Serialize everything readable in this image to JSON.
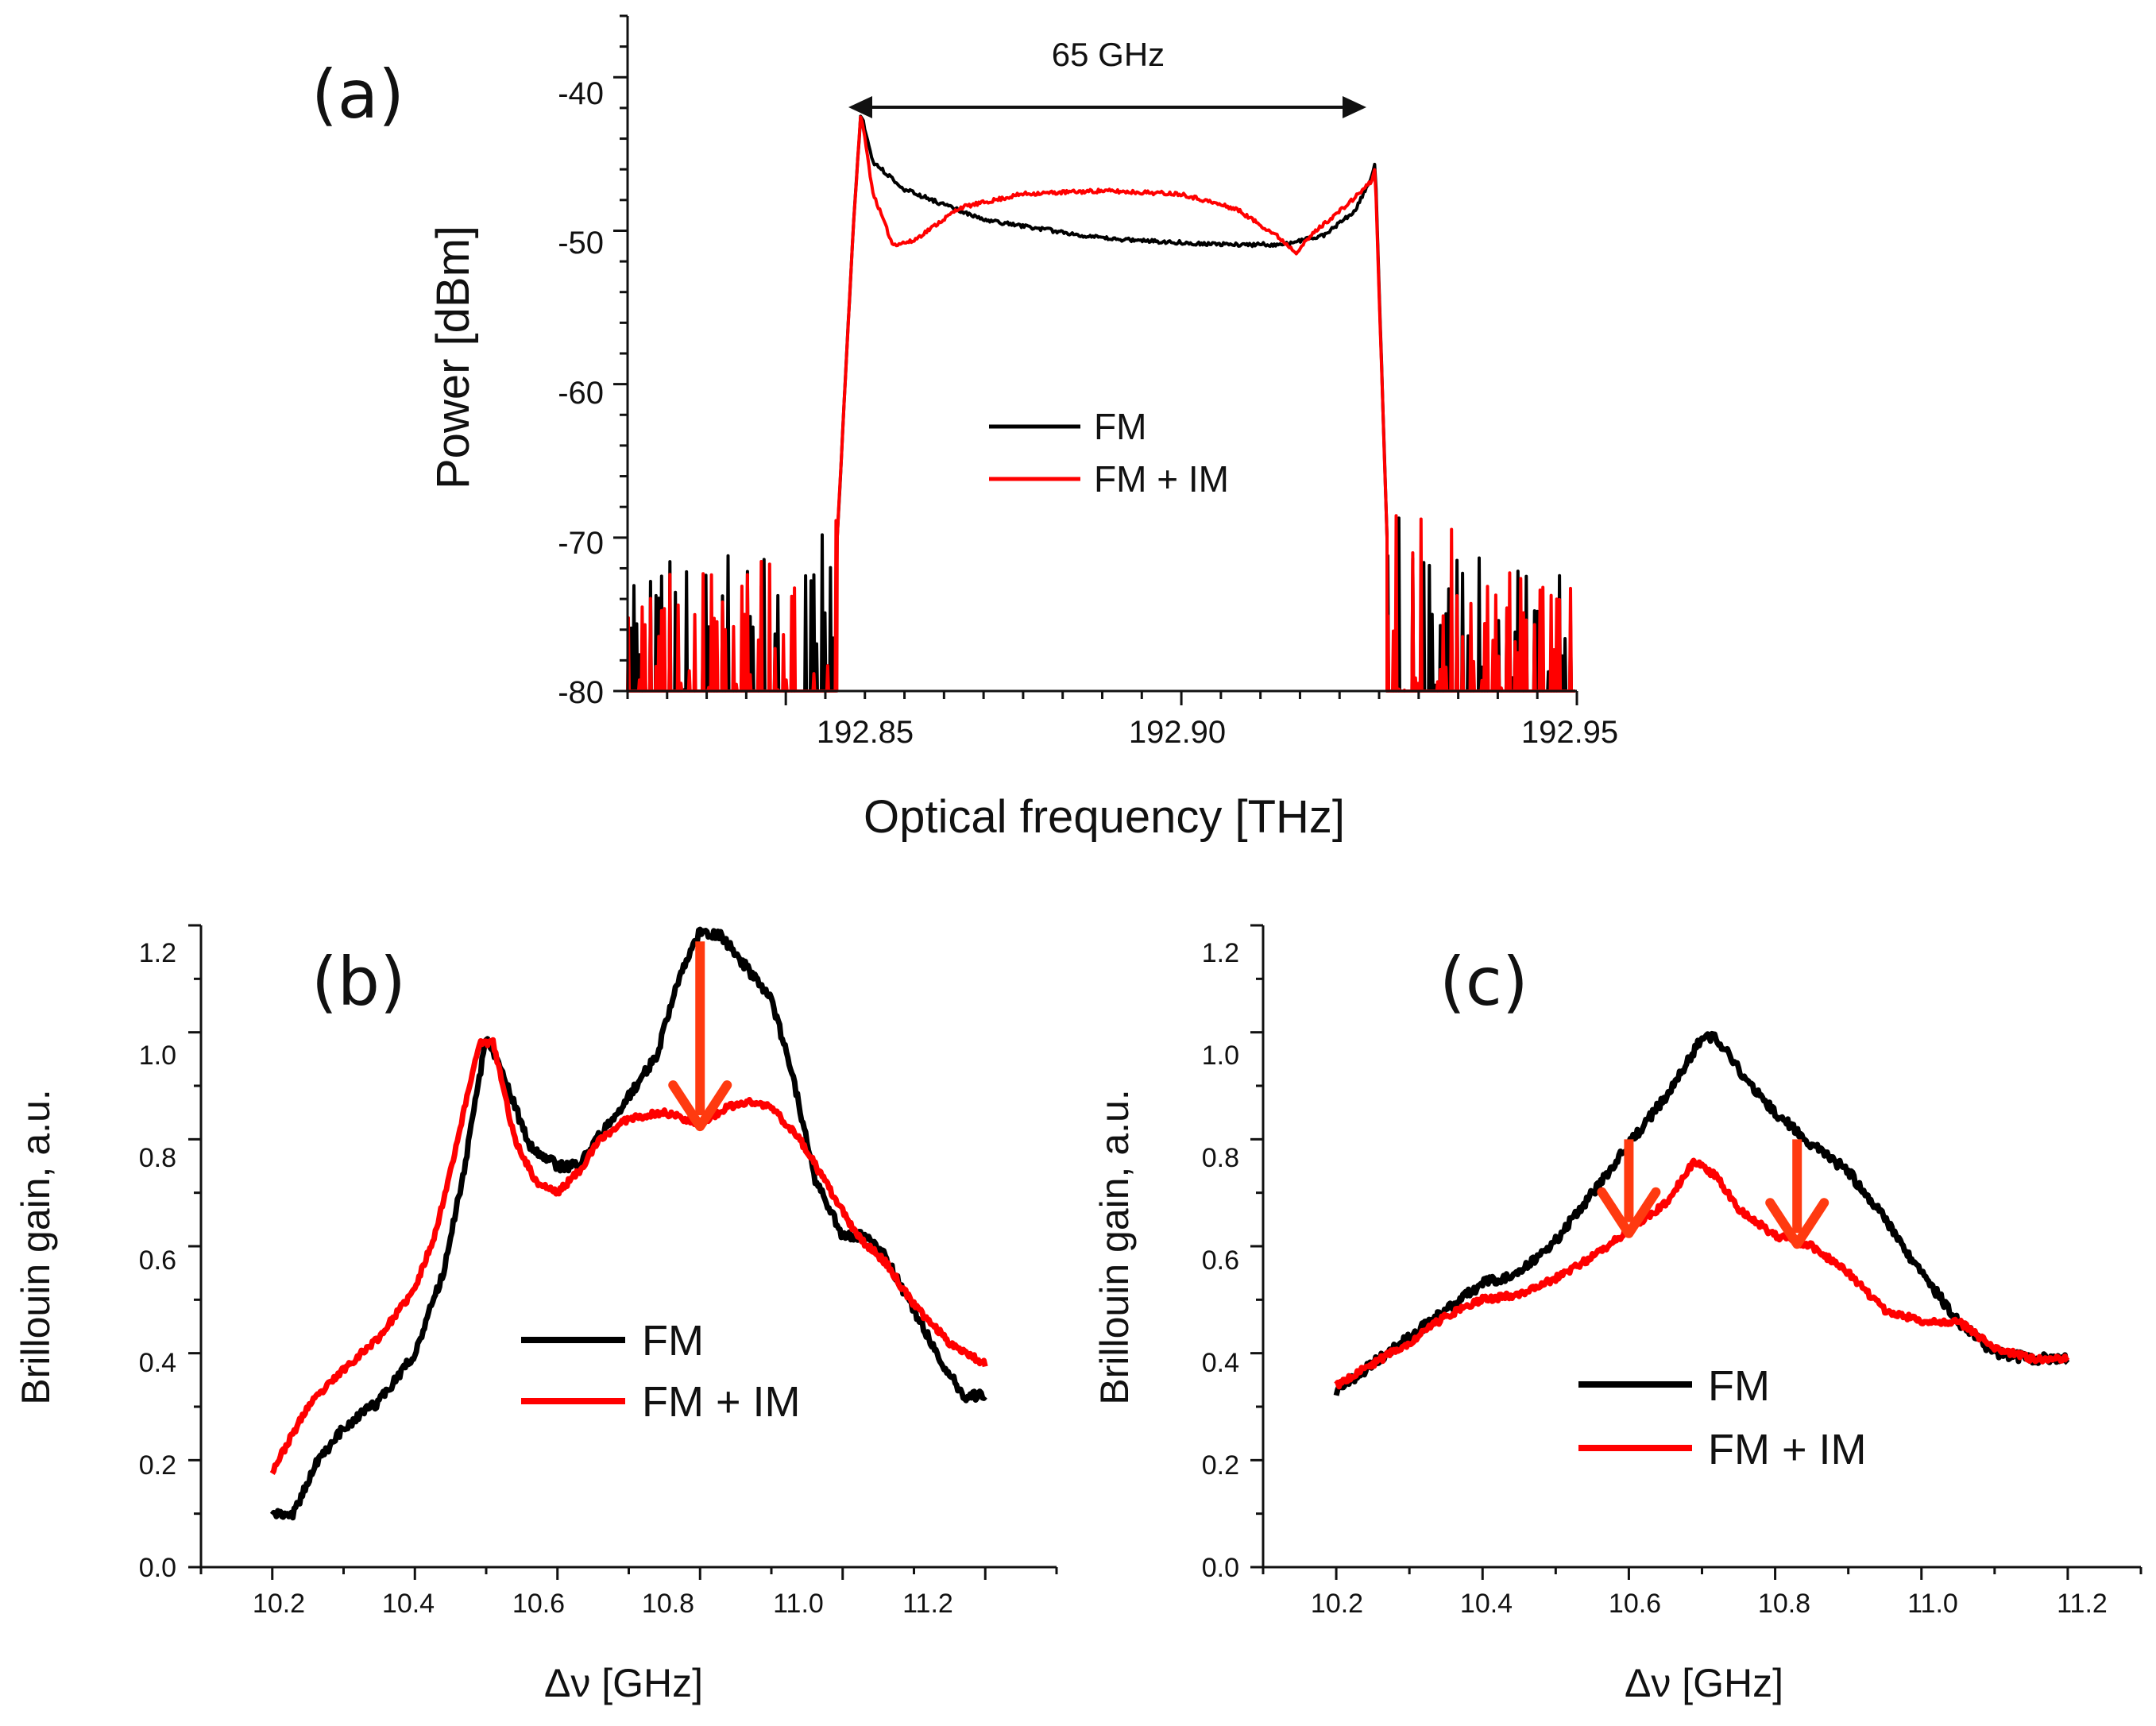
{
  "chart_data": [
    {
      "panel": "(a)",
      "type": "line",
      "xlabel": "Optical frequency [THz]",
      "ylabel": "Power [dBm]",
      "xlim": [
        192.83,
        192.95
      ],
      "ylim": [
        -80,
        -36
      ],
      "xticks": [
        192.85,
        192.9,
        192.95
      ],
      "xtick_labels": [
        "192.85",
        "192.90",
        "192.95"
      ],
      "yticks": [
        -80,
        -70,
        -60,
        -50,
        -40
      ],
      "ytick_labels": [
        "-80",
        "-70",
        "-60",
        "-50",
        "-40"
      ],
      "annotation": {
        "text": "65 GHz",
        "from_x": 192.8595,
        "to_x": 192.9245,
        "y": -38.8
      },
      "legend_position": "center",
      "series": [
        {
          "name": "FM",
          "color": "#000000",
          "edge_x": [
            192.8565,
            192.8585,
            192.8595,
            192.861,
            192.865,
            192.875,
            192.89,
            192.905,
            192.913,
            192.918,
            192.922,
            192.924,
            192.9245,
            192.926
          ],
          "edge_y": [
            -70,
            -50,
            -42.3,
            -45.5,
            -47.3,
            -49.3,
            -50.5,
            -50.9,
            -50.9,
            -50.3,
            -48.7,
            -46.5,
            -45.5,
            -70
          ],
          "noise_seed": 3
        },
        {
          "name": "FM + IM",
          "color": "#ff0000",
          "edge_x": [
            192.8565,
            192.8585,
            192.8595,
            192.861,
            192.8635,
            192.866,
            192.872,
            192.88,
            192.89,
            192.9,
            192.907,
            192.912,
            192.9145,
            192.917,
            192.921,
            192.924,
            192.9245,
            192.926
          ],
          "edge_y": [
            -70,
            -50,
            -42.3,
            -47.5,
            -50.9,
            -50.7,
            -48.5,
            -47.6,
            -47.4,
            -47.6,
            -48.6,
            -50.3,
            -51.4,
            -50.0,
            -48.3,
            -46.8,
            -46.0,
            -70
          ],
          "noise_seed": 11
        }
      ]
    },
    {
      "panel": "(b)",
      "type": "line",
      "xlabel": "Δν [GHz]",
      "ylabel": "Brillouin gain, a.u.",
      "xlim": [
        10.1,
        11.3
      ],
      "ylim": [
        0,
        1.2
      ],
      "xticks": [
        10.2,
        10.4,
        10.6,
        10.8,
        11.0,
        11.2
      ],
      "xtick_labels": [
        "10.2",
        "10.4",
        "10.6",
        "10.8",
        "11.0",
        "11.2"
      ],
      "yticks": [
        0.0,
        0.2,
        0.4,
        0.6,
        0.8,
        1.0,
        1.2
      ],
      "ytick_labels": [
        "0.0",
        "0.2",
        "0.4",
        "0.6",
        "0.8",
        "1.0",
        "1.2"
      ],
      "arrows": [
        {
          "x": 10.8,
          "y_from": 1.17,
          "y_to": 0.83
        }
      ],
      "legend_position": "lower-center",
      "series": [
        {
          "name": "FM",
          "color": "#000000",
          "x": [
            10.2,
            10.23,
            10.26,
            10.3,
            10.35,
            10.4,
            10.44,
            10.47,
            10.5,
            10.53,
            10.56,
            10.6,
            10.63,
            10.66,
            10.7,
            10.74,
            10.77,
            10.8,
            10.83,
            10.86,
            10.9,
            10.93,
            10.96,
            11.0,
            11.03,
            11.06,
            11.1,
            11.14,
            11.17,
            11.2
          ],
          "y": [
            0.1,
            0.1,
            0.19,
            0.26,
            0.31,
            0.4,
            0.55,
            0.75,
            0.99,
            0.9,
            0.79,
            0.75,
            0.75,
            0.81,
            0.88,
            0.96,
            1.1,
            1.19,
            1.18,
            1.13,
            1.06,
            0.92,
            0.73,
            0.62,
            0.62,
            0.58,
            0.48,
            0.38,
            0.32,
            0.32
          ]
        },
        {
          "name": "FM + IM",
          "color": "#ff0000",
          "x": [
            10.2,
            10.25,
            10.3,
            10.35,
            10.4,
            10.43,
            10.46,
            10.49,
            10.51,
            10.54,
            10.57,
            10.6,
            10.63,
            10.66,
            10.7,
            10.75,
            10.8,
            10.84,
            10.87,
            10.9,
            10.94,
            10.98,
            11.02,
            11.06,
            11.1,
            11.15,
            11.2
          ],
          "y": [
            0.18,
            0.3,
            0.37,
            0.43,
            0.52,
            0.63,
            0.8,
            0.98,
            0.98,
            0.8,
            0.72,
            0.7,
            0.74,
            0.8,
            0.84,
            0.85,
            0.83,
            0.86,
            0.87,
            0.86,
            0.8,
            0.71,
            0.62,
            0.57,
            0.49,
            0.42,
            0.38
          ]
        }
      ]
    },
    {
      "panel": "(c)",
      "type": "line",
      "xlabel": "Δν [GHz]",
      "ylabel": "Brillouin gain, a.u.",
      "xlim": [
        10.1,
        11.3
      ],
      "ylim": [
        0,
        1.2
      ],
      "xticks": [
        10.2,
        10.4,
        10.6,
        10.8,
        11.0,
        11.2
      ],
      "xtick_labels": [
        "10.2",
        "10.4",
        "10.6",
        "10.8",
        "11.0",
        "11.2"
      ],
      "yticks": [
        0.0,
        0.2,
        0.4,
        0.6,
        0.8,
        1.0,
        1.2
      ],
      "ytick_labels": [
        "0.0",
        "0.2",
        "0.4",
        "0.6",
        "0.8",
        "1.0",
        "1.2"
      ],
      "arrows": [
        {
          "x": 10.6,
          "y_from": 0.8,
          "y_to": 0.63
        },
        {
          "x": 10.83,
          "y_from": 0.8,
          "y_to": 0.61
        }
      ],
      "legend_position": "lower-center",
      "series": [
        {
          "name": "FM",
          "color": "#000000",
          "x": [
            10.2,
            10.25,
            10.3,
            10.35,
            10.4,
            10.45,
            10.5,
            10.55,
            10.6,
            10.65,
            10.7,
            10.72,
            10.75,
            10.8,
            10.85,
            10.9,
            10.95,
            11.0,
            11.05,
            11.1,
            11.15,
            11.2
          ],
          "y": [
            0.33,
            0.38,
            0.43,
            0.48,
            0.53,
            0.55,
            0.61,
            0.7,
            0.79,
            0.88,
            0.99,
            0.99,
            0.93,
            0.85,
            0.79,
            0.74,
            0.65,
            0.55,
            0.46,
            0.4,
            0.39,
            0.39
          ]
        },
        {
          "name": "FM + IM",
          "color": "#ff0000",
          "x": [
            10.2,
            10.25,
            10.3,
            10.35,
            10.4,
            10.45,
            10.5,
            10.55,
            10.6,
            10.65,
            10.69,
            10.72,
            10.75,
            10.8,
            10.85,
            10.9,
            10.95,
            11.0,
            11.05,
            11.1,
            11.15,
            11.2
          ],
          "y": [
            0.34,
            0.38,
            0.42,
            0.47,
            0.5,
            0.51,
            0.54,
            0.58,
            0.63,
            0.68,
            0.76,
            0.73,
            0.67,
            0.62,
            0.6,
            0.55,
            0.48,
            0.46,
            0.46,
            0.41,
            0.39,
            0.39
          ]
        }
      ]
    }
  ]
}
